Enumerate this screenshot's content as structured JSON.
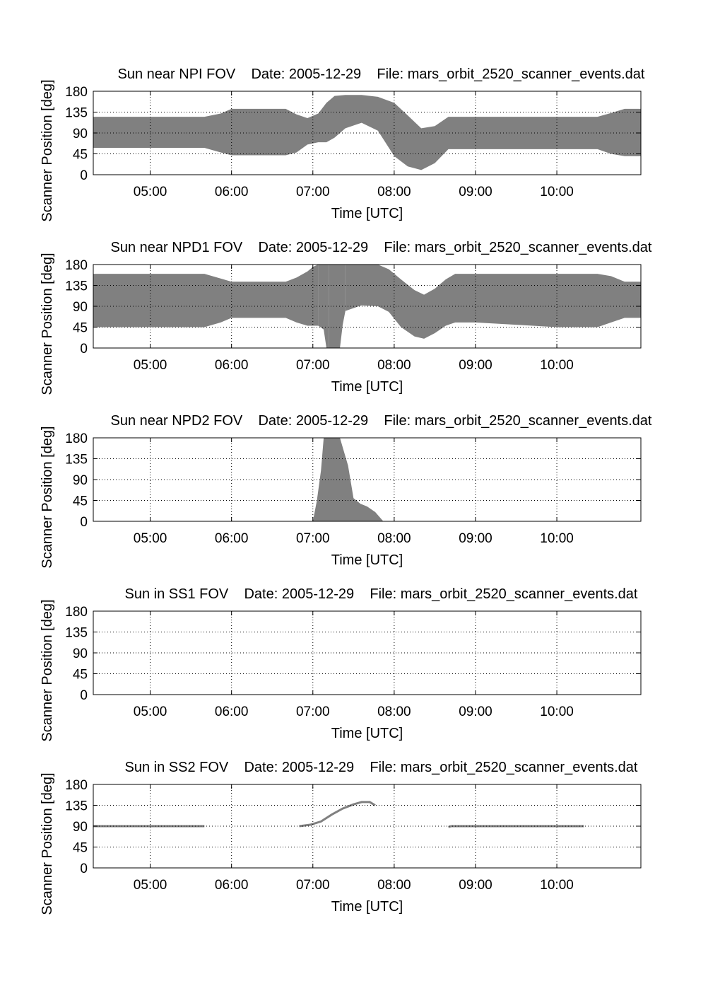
{
  "figure": {
    "background": "#ffffff",
    "fill_color": "#808080",
    "grid_color": "#000000"
  },
  "chart_data": [
    {
      "type": "area",
      "title": "Sun near NPI FOV    Date: 2005-12-29    File: mars_orbit_2520_scanner_events.dat",
      "xlabel": "Time [UTC]",
      "ylabel": "Scanner Position [deg]",
      "xlim": [
        "04:18",
        "11:02"
      ],
      "ylim": [
        0,
        180
      ],
      "xticks": [
        "05:00",
        "06:00",
        "07:00",
        "08:00",
        "09:00",
        "10:00"
      ],
      "yticks": [
        0,
        45,
        90,
        135,
        180
      ],
      "grid": true,
      "bands": [
        {
          "x": [
            "04:18",
            "05:00",
            "05:40",
            "05:52",
            "06:00",
            "06:40",
            "06:48",
            "06:56",
            "07:04",
            "07:10",
            "07:16",
            "07:24",
            "07:36",
            "07:48",
            "08:00",
            "08:10",
            "08:20",
            "08:30",
            "08:40",
            "09:00",
            "10:00",
            "10:30",
            "10:40",
            "10:50",
            "11:02"
          ],
          "upper": [
            125,
            125,
            125,
            132,
            142,
            142,
            130,
            122,
            132,
            155,
            170,
            172,
            172,
            168,
            155,
            128,
            100,
            105,
            125,
            125,
            125,
            125,
            133,
            142,
            142
          ],
          "lower": [
            58,
            58,
            58,
            48,
            42,
            42,
            48,
            65,
            70,
            70,
            80,
            100,
            112,
            95,
            40,
            18,
            10,
            25,
            55,
            55,
            55,
            55,
            45,
            40,
            40
          ]
        }
      ]
    },
    {
      "type": "area",
      "title": "Sun near NPD1 FOV    Date: 2005-12-29    File: mars_orbit_2520_scanner_events.dat",
      "xlabel": "Time [UTC]",
      "ylabel": "Scanner Position [deg]",
      "xlim": [
        "04:18",
        "11:02"
      ],
      "ylim": [
        0,
        180
      ],
      "xticks": [
        "05:00",
        "06:00",
        "07:00",
        "08:00",
        "09:00",
        "10:00"
      ],
      "yticks": [
        0,
        45,
        90,
        135,
        180
      ],
      "grid": true,
      "bands": [
        {
          "x": [
            "04:18",
            "05:40",
            "05:52",
            "06:00",
            "06:40",
            "06:48",
            "06:56",
            "07:00",
            "07:04"
          ],
          "upper": [
            160,
            160,
            150,
            143,
            143,
            152,
            165,
            175,
            180
          ],
          "lower": [
            45,
            45,
            55,
            65,
            65,
            55,
            48,
            48,
            48
          ]
        },
        {
          "x": [
            "07:04",
            "07:08",
            "07:10",
            "07:12"
          ],
          "upper": [
            180,
            180,
            180,
            180
          ],
          "lower": [
            48,
            40,
            0,
            0
          ]
        },
        {
          "x": [
            "07:12",
            "07:20",
            "07:22",
            "07:24"
          ],
          "upper": [
            180,
            180,
            180,
            180
          ],
          "lower": [
            0,
            0,
            50,
            80
          ]
        },
        {
          "x": [
            "07:24",
            "07:36",
            "07:48",
            "07:56",
            "08:05",
            "08:15",
            "08:22",
            "08:30",
            "08:38",
            "08:45",
            "09:00",
            "10:00",
            "10:30",
            "10:40",
            "10:50",
            "11:02"
          ],
          "upper": [
            180,
            180,
            180,
            170,
            148,
            125,
            115,
            128,
            148,
            160,
            160,
            160,
            160,
            155,
            143,
            143
          ],
          "lower": [
            80,
            92,
            90,
            78,
            45,
            25,
            20,
            32,
            48,
            55,
            55,
            45,
            45,
            55,
            65,
            65
          ]
        }
      ]
    },
    {
      "type": "area",
      "title": "Sun near NPD2 FOV    Date: 2005-12-29    File: mars_orbit_2520_scanner_events.dat",
      "xlabel": "Time [UTC]",
      "ylabel": "Scanner Position [deg]",
      "xlim": [
        "04:18",
        "11:02"
      ],
      "ylim": [
        0,
        180
      ],
      "xticks": [
        "05:00",
        "06:00",
        "07:00",
        "08:00",
        "09:00",
        "10:00"
      ],
      "yticks": [
        0,
        45,
        90,
        135,
        180
      ],
      "grid": true,
      "bands": [
        {
          "x": [
            "07:00",
            "07:03",
            "07:06",
            "07:08",
            "07:12",
            "07:20",
            "07:26",
            "07:30",
            "07:35",
            "07:40",
            "07:46",
            "07:52"
          ],
          "upper": [
            0,
            45,
            110,
            180,
            180,
            180,
            120,
            50,
            38,
            32,
            20,
            0
          ],
          "lower": [
            0,
            0,
            0,
            0,
            0,
            0,
            0,
            0,
            0,
            0,
            0,
            0
          ]
        }
      ]
    },
    {
      "type": "area",
      "title": "Sun in SS1 FOV    Date: 2005-12-29    File: mars_orbit_2520_scanner_events.dat",
      "xlabel": "Time [UTC]",
      "ylabel": "Scanner Position [deg]",
      "xlim": [
        "04:18",
        "11:02"
      ],
      "ylim": [
        0,
        180
      ],
      "xticks": [
        "05:00",
        "06:00",
        "07:00",
        "08:00",
        "09:00",
        "10:00"
      ],
      "yticks": [
        0,
        45,
        90,
        135,
        180
      ],
      "grid": true,
      "bands": []
    },
    {
      "type": "line",
      "title": "Sun in SS2 FOV    Date: 2005-12-29    File: mars_orbit_2520_scanner_events.dat",
      "xlabel": "Time [UTC]",
      "ylabel": "Scanner Position [deg]",
      "xlim": [
        "04:18",
        "11:02"
      ],
      "ylim": [
        0,
        180
      ],
      "xticks": [
        "05:00",
        "06:00",
        "07:00",
        "08:00",
        "09:00",
        "10:00"
      ],
      "yticks": [
        0,
        45,
        90,
        135,
        180
      ],
      "grid": true,
      "lines": [
        {
          "x": [
            "04:18",
            "05:40"
          ],
          "y": [
            90,
            90
          ]
        },
        {
          "x": [
            "06:50",
            "06:58",
            "07:06",
            "07:14",
            "07:22",
            "07:30",
            "07:36",
            "07:42",
            "07:46"
          ],
          "y": [
            90,
            93,
            100,
            115,
            128,
            137,
            142,
            142,
            135
          ]
        },
        {
          "x": [
            "08:40",
            "08:42",
            "09:00",
            "10:00",
            "10:20"
          ],
          "y": [
            88,
            90,
            90,
            90,
            90
          ]
        }
      ]
    }
  ]
}
